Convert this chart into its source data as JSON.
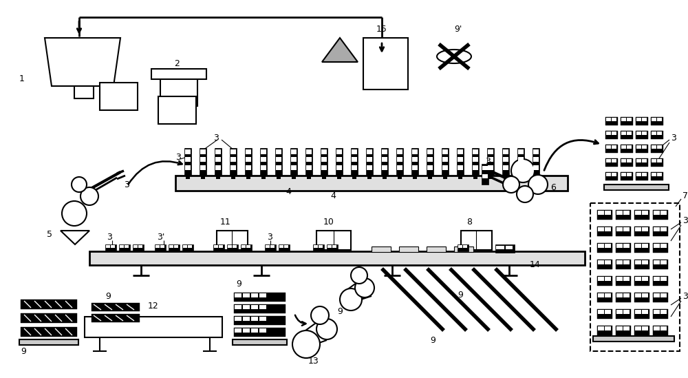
{
  "bg_color": "#ffffff",
  "line_color": "#000000",
  "figsize": [
    10.0,
    5.49
  ],
  "dpi": 100
}
